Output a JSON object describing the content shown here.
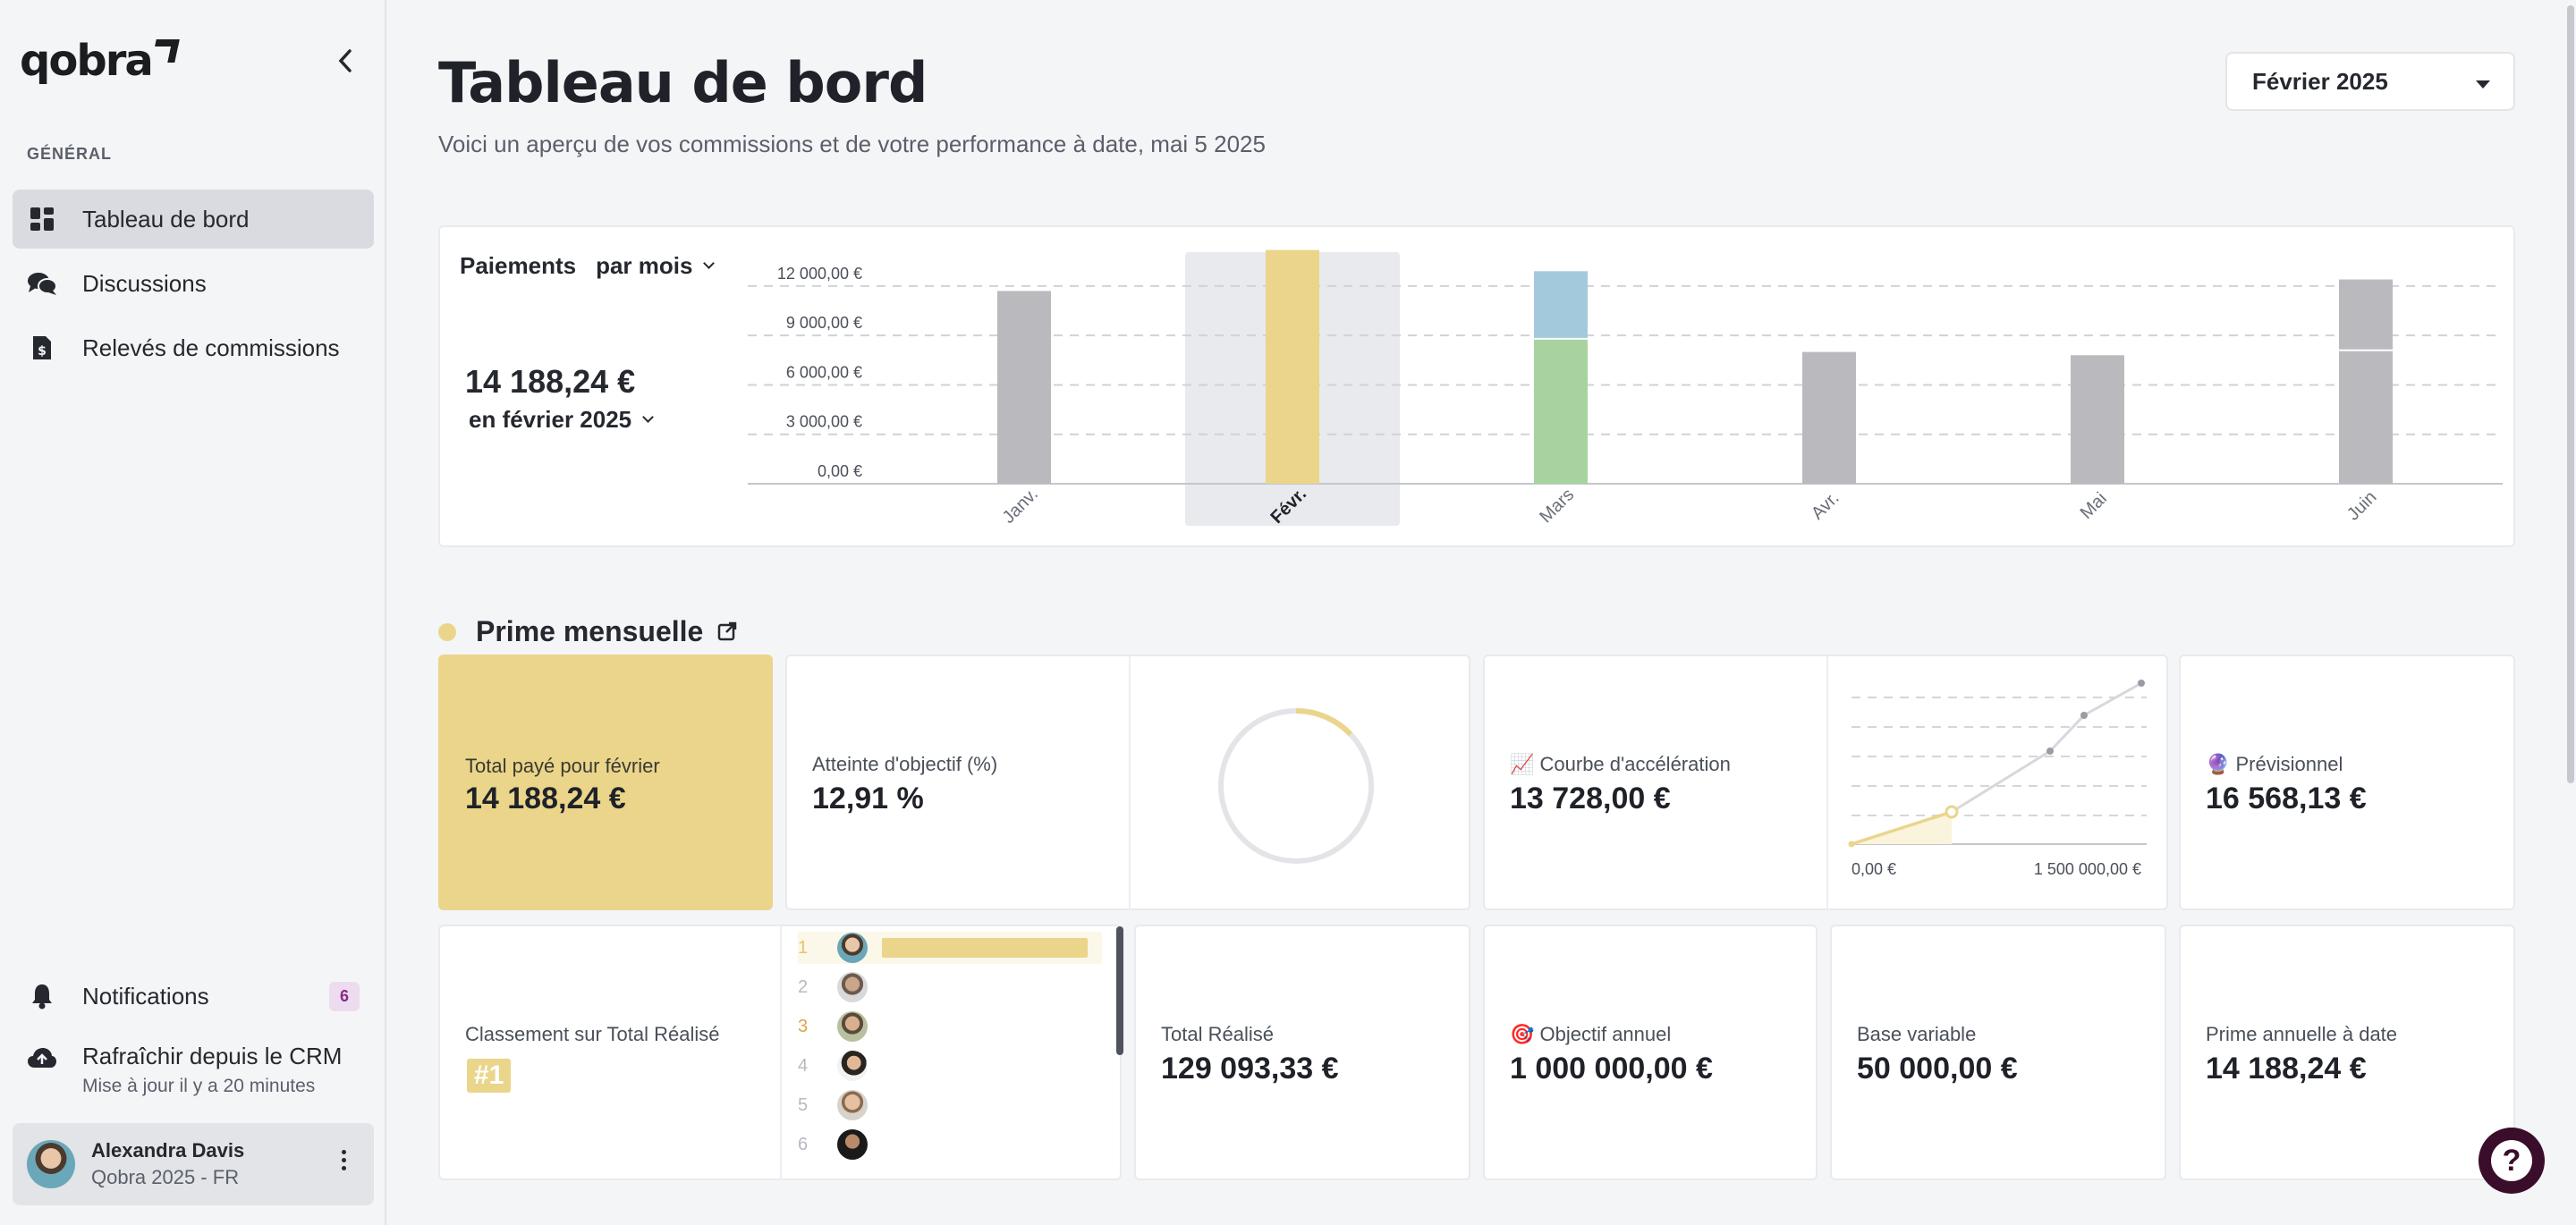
{
  "sidebar": {
    "logo": "qobra",
    "section_label": "GÉNÉRAL",
    "items": [
      {
        "label": "Tableau de bord",
        "icon": "dashboard-icon"
      },
      {
        "label": "Discussions",
        "icon": "chat-icon"
      },
      {
        "label": "Relevés de commissions",
        "icon": "statement-icon"
      }
    ],
    "notifications": {
      "label": "Notifications",
      "count": "6"
    },
    "refresh": {
      "label": "Rafraîchir depuis le CRM",
      "sub": "Mise à jour il y a 20 minutes"
    },
    "user": {
      "name": "Alexandra Davis",
      "org": "Qobra 2025 - FR"
    }
  },
  "header": {
    "title": "Tableau de bord",
    "subtitle": "Voici un aperçu de vos commissions et de votre performance à date, mai 5 2025",
    "period": "Février 2025"
  },
  "payments": {
    "label": "Paiements",
    "mode": "par mois",
    "total": "14 188,24 €",
    "period": "en février 2025"
  },
  "chart_data": {
    "type": "bar",
    "stacked": true,
    "categories": [
      "Janv.",
      "Févr.",
      "Mars",
      "Avr.",
      "Mai",
      "Juin"
    ],
    "selected_category": "Févr.",
    "series": [
      {
        "values": [
          11700,
          14188,
          8800,
          8000,
          7800,
          8100
        ],
        "colors": [
          "#bababe",
          "#ead58b",
          "#a8d3a0",
          "#bababe",
          "#bababe",
          "#bababe"
        ]
      },
      {
        "values": [
          0,
          0,
          4100,
          0,
          0,
          4300
        ],
        "colors": [
          "#bababe",
          "#ead58b",
          "#a3c9dd",
          "#bababe",
          "#bababe",
          "#bababe"
        ]
      }
    ],
    "yticks": [
      "0,00 €",
      "3 000,00 €",
      "6 000,00 €",
      "9 000,00 €",
      "12 000,00 €"
    ],
    "ytick_values": [
      0,
      3000,
      6000,
      9000,
      12000
    ],
    "ylim": [
      0,
      14600
    ],
    "grid": true
  },
  "prime": {
    "title": "Prime mensuelle",
    "paid_label": "Total payé pour février",
    "paid_value": "14 188,24 €",
    "attainment_label": "Atteinte d'objectif (%)",
    "attainment_value": "12,91 %",
    "attainment_fraction": 0.1291,
    "accel_label": "📈 Courbe d'accélération",
    "accel_value": "13 728,00 €",
    "accel_axis_min": "0,00 €",
    "accel_axis_max": "1 500 000,00 €",
    "forecast_label": "🔮 Prévisionnel",
    "forecast_value": "16 568,13 €",
    "rank_label": "Classement sur Total Réalisé",
    "rank_value": "#1",
    "ranking": [
      "1",
      "2",
      "3",
      "4",
      "5",
      "6"
    ],
    "realized_label": "Total Réalisé",
    "realized_value": "129 093,33 €",
    "objective_label": "🎯 Objectif annuel",
    "objective_value": "1 000 000,00 €",
    "base_label": "Base variable",
    "base_value": "50 000,00 €",
    "annual_label": "Prime annuelle à date",
    "annual_value": "14 188,24 €"
  },
  "colors": {
    "accent": "#ead58b",
    "dark": "#3a0d2a",
    "bar_default": "#bababe"
  }
}
